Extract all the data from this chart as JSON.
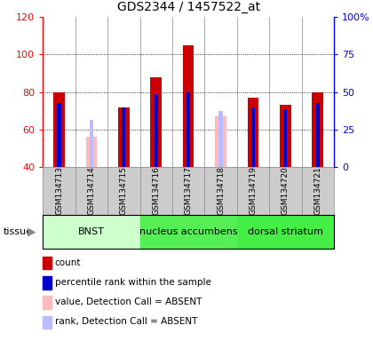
{
  "title": "GDS2344 / 1457522_at",
  "samples": [
    "GSM134713",
    "GSM134714",
    "GSM134715",
    "GSM134716",
    "GSM134717",
    "GSM134718",
    "GSM134719",
    "GSM134720",
    "GSM134721"
  ],
  "count_values": [
    80,
    null,
    72,
    88,
    105,
    null,
    77,
    73,
    80
  ],
  "count_absent_values": [
    null,
    56,
    null,
    null,
    null,
    67,
    null,
    null,
    null
  ],
  "rank_values": [
    74,
    null,
    72,
    79,
    80,
    null,
    72,
    71,
    74
  ],
  "rank_absent_values": [
    null,
    65,
    null,
    null,
    null,
    70,
    null,
    null,
    null
  ],
  "ylim_left": [
    40,
    120
  ],
  "ylim_right": [
    0,
    100
  ],
  "yticks_left": [
    40,
    60,
    80,
    100,
    120
  ],
  "yticks_right": [
    0,
    25,
    50,
    75,
    100
  ],
  "ytick_labels_right": [
    "0",
    "25",
    "50",
    "75",
    "100%"
  ],
  "tissues": [
    {
      "label": "BNST",
      "start": 0,
      "end": 3,
      "color": "#ccffcc"
    },
    {
      "label": "nucleus accumbens",
      "start": 3,
      "end": 6,
      "color": "#55ee55"
    },
    {
      "label": "dorsal striatum",
      "start": 6,
      "end": 9,
      "color": "#44ee44"
    }
  ],
  "tissue_label": "tissue",
  "count_color": "#cc0000",
  "rank_color": "#0000cc",
  "count_absent_color": "#ffbbbb",
  "rank_absent_color": "#bbbbff",
  "bar_width": 0.35,
  "rank_bar_width": 0.12,
  "col_bg_color": "#cccccc",
  "plot_bg_color": "#ffffff",
  "legend_items": [
    {
      "label": "count",
      "color": "#cc0000"
    },
    {
      "label": "percentile rank within the sample",
      "color": "#0000cc"
    },
    {
      "label": "value, Detection Call = ABSENT",
      "color": "#ffbbbb"
    },
    {
      "label": "rank, Detection Call = ABSENT",
      "color": "#bbbbff"
    }
  ]
}
